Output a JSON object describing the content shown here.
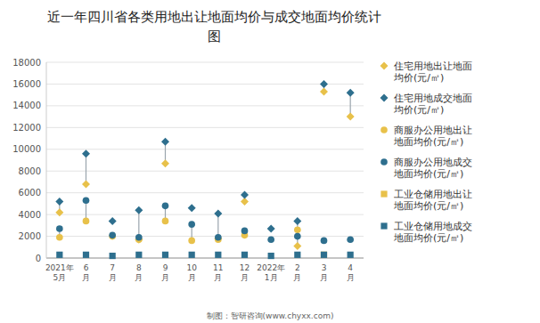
{
  "chart_data": {
    "type": "dot",
    "title": "近一年四川省各类用地出让地面均价与成交地面均价统计",
    "subtitle": "图",
    "annotations": [
      "制图：智研咨询(www.chyxx.com)"
    ],
    "categories": [
      "2021年\n5月",
      "6\n月",
      "7\n月",
      "8\n月",
      "9\n月",
      "10\n月",
      "11\n月",
      "12\n月",
      "2022年\n1月",
      "2\n月",
      "3\n月",
      "4\n月"
    ],
    "series": [
      {
        "name": "住宅用地出让地面\n均价(元/㎡)",
        "color": "#E8C14A",
        "marker": "diamond",
        "values": [
          4200,
          6800,
          null,
          1700,
          8700,
          null,
          1800,
          5200,
          null,
          1100,
          15300,
          13000
        ]
      },
      {
        "name": "住宅用地成交地面\n均价(元/㎡)",
        "color": "#2E6F8E",
        "marker": "diamond",
        "values": [
          5200,
          9600,
          3400,
          4400,
          10700,
          4600,
          4100,
          5800,
          2700,
          3400,
          16000,
          15200
        ]
      },
      {
        "name": "商服办公用地出让\n地面均价(元/㎡)",
        "color": "#E8C14A",
        "marker": "circle",
        "values": [
          1900,
          3400,
          2000,
          1700,
          3400,
          1600,
          1700,
          2100,
          null,
          2600,
          null,
          null
        ]
      },
      {
        "name": "商服办公用地成交\n地面均价(元/㎡)",
        "color": "#2E6F8E",
        "marker": "circle",
        "values": [
          2700,
          5300,
          2100,
          1900,
          4800,
          3100,
          1900,
          2500,
          1700,
          2000,
          1600,
          1700
        ]
      },
      {
        "name": "工业仓储用地出让\n地面均价(元/㎡)",
        "color": "#E8C14A",
        "marker": "square",
        "values": [
          null,
          null,
          null,
          null,
          null,
          null,
          null,
          null,
          null,
          null,
          300,
          null
        ]
      },
      {
        "name": "工业仓储用地成交\n地面均价(元/㎡)",
        "color": "#2E6F8E",
        "marker": "square",
        "values": [
          300,
          300,
          200,
          300,
          300,
          300,
          300,
          300,
          200,
          300,
          300,
          300
        ]
      }
    ],
    "ylim": [
      0,
      18000
    ],
    "yticks": [
      0,
      2000,
      4000,
      6000,
      8000,
      10000,
      12000,
      14000,
      16000,
      18000
    ],
    "grid": true,
    "legend": "right"
  }
}
